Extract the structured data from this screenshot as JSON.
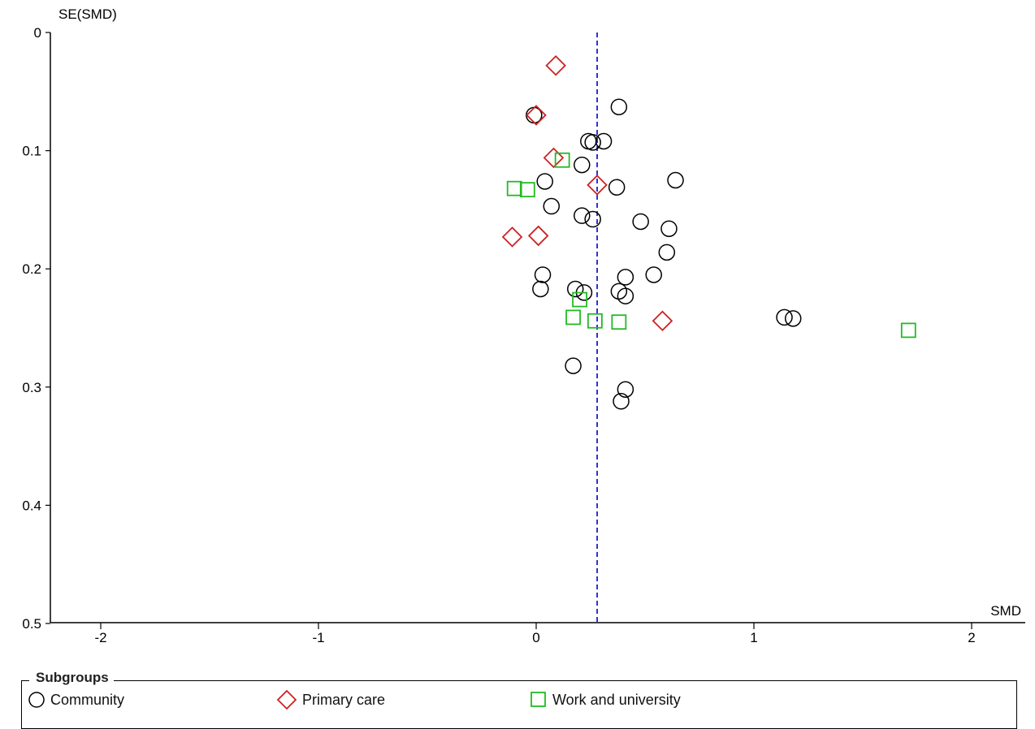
{
  "chart_data": {
    "type": "scatter",
    "title": "",
    "xlabel": "SMD",
    "ylabel": "SE(SMD)",
    "xlim": [
      -2.25,
      2.25
    ],
    "ylim": [
      0,
      0.5
    ],
    "y_inverted": true,
    "x_ticks": [
      -2,
      -1,
      0,
      1,
      2
    ],
    "x_tick_labels": [
      "-2",
      "-1",
      "0",
      "1",
      "2"
    ],
    "y_ticks": [
      0,
      0.1,
      0.2,
      0.3,
      0.4,
      0.5
    ],
    "y_tick_labels": [
      "0",
      "0.1",
      "0.2",
      "0.3",
      "0.4",
      "0.5"
    ],
    "reference_line": {
      "x": 0.28,
      "style": "dashed",
      "color": "#0000cc"
    },
    "grid": false,
    "legend_placement": "bottom",
    "legend_title": "Subgroups",
    "series": [
      {
        "name": "Community",
        "marker": "circle",
        "color": "#000000",
        "points": [
          [
            0.38,
            0.063
          ],
          [
            -0.01,
            0.07
          ],
          [
            0.24,
            0.092
          ],
          [
            0.26,
            0.093
          ],
          [
            0.31,
            0.092
          ],
          [
            0.21,
            0.112
          ],
          [
            0.04,
            0.126
          ],
          [
            0.37,
            0.131
          ],
          [
            0.64,
            0.125
          ],
          [
            0.07,
            0.147
          ],
          [
            0.21,
            0.155
          ],
          [
            0.26,
            0.158
          ],
          [
            0.48,
            0.16
          ],
          [
            0.61,
            0.166
          ],
          [
            0.6,
            0.186
          ],
          [
            0.03,
            0.205
          ],
          [
            0.41,
            0.207
          ],
          [
            0.54,
            0.205
          ],
          [
            0.02,
            0.217
          ],
          [
            0.18,
            0.217
          ],
          [
            0.22,
            0.22
          ],
          [
            0.38,
            0.219
          ],
          [
            0.41,
            0.223
          ],
          [
            1.14,
            0.241
          ],
          [
            1.18,
            0.242
          ],
          [
            0.17,
            0.282
          ],
          [
            0.41,
            0.302
          ],
          [
            0.39,
            0.312
          ]
        ]
      },
      {
        "name": "Primary care",
        "marker": "diamond",
        "color": "#cc2222",
        "points": [
          [
            0.09,
            0.028
          ],
          [
            0.0,
            0.07
          ],
          [
            0.08,
            0.106
          ],
          [
            0.28,
            0.129
          ],
          [
            -0.11,
            0.173
          ],
          [
            0.01,
            0.172
          ],
          [
            0.58,
            0.244
          ]
        ]
      },
      {
        "name": "Work and university",
        "marker": "square",
        "color": "#22bb22",
        "points": [
          [
            0.12,
            0.108
          ],
          [
            -0.1,
            0.132
          ],
          [
            -0.04,
            0.133
          ],
          [
            0.2,
            0.226
          ],
          [
            0.17,
            0.241
          ],
          [
            0.27,
            0.244
          ],
          [
            0.38,
            0.245
          ],
          [
            1.71,
            0.252
          ]
        ]
      }
    ]
  }
}
